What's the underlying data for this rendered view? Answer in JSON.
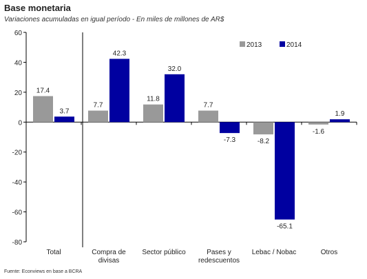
{
  "chart_data": {
    "type": "bar",
    "title": "Base monetaria",
    "subtitle": "Variaciones acumuladas en igual período - En miles de millones de AR$",
    "categories": [
      [
        "Total"
      ],
      [
        "Compra de",
        "divisas"
      ],
      [
        "Sector público"
      ],
      [
        "Pases y",
        "redescuentos"
      ],
      [
        "Lebac / Nobac"
      ],
      [
        "Otros"
      ]
    ],
    "series": [
      {
        "name": "2013",
        "color": "#999999",
        "values": [
          17.4,
          7.7,
          11.8,
          7.7,
          -8.2,
          -1.6
        ]
      },
      {
        "name": "2014",
        "color": "#0000a0",
        "values": [
          3.7,
          42.3,
          32.0,
          -7.3,
          -65.1,
          1.9
        ]
      }
    ],
    "data_labels": [
      [
        "17.4",
        "7.7",
        "11.8",
        "7.7",
        "-8.2",
        "-1.6"
      ],
      [
        "3.7",
        "42.3",
        "32.0",
        "-7.3",
        "-65.1",
        "1.9"
      ]
    ],
    "yticks": [
      60,
      40,
      20,
      0,
      -20,
      -40,
      -60,
      -80
    ],
    "ylim": [
      -80,
      60
    ],
    "legend_position": "top-right",
    "grid": false
  },
  "source": "Fuente: Econviews en base a BCRA"
}
